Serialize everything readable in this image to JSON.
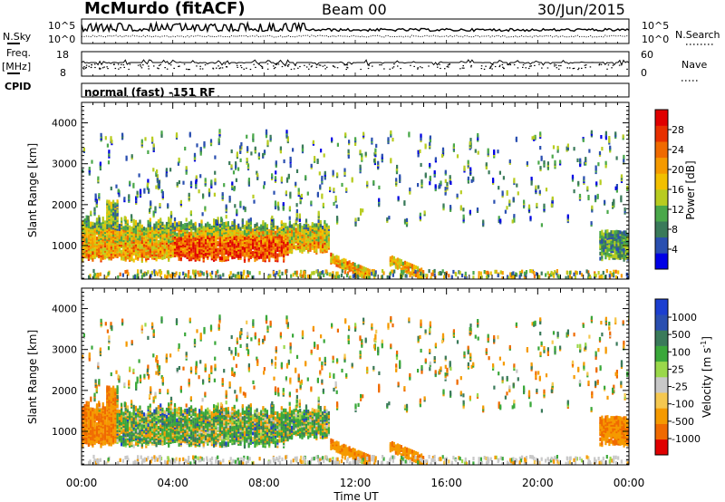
{
  "header": {
    "station": "McMurdo (fitACF)",
    "beam": "Beam 00",
    "date": "30/Jun/2015"
  },
  "summary": {
    "nsky_label": "N.Sky",
    "nsearch_label": "N.Search",
    "freq_label": "Freq.",
    "freq_unit": "[MHz]",
    "nave_label": "Nave",
    "cpid_label": "CPID",
    "cpid_value": "normal (fast) -151 RF",
    "noise_ticks_left": [
      "10^5",
      "10^0"
    ],
    "noise_ticks_right": [
      "10^5",
      "10^0"
    ],
    "freq_ticks": [
      "18",
      "8"
    ],
    "nave_ticks": [
      "60",
      "0"
    ]
  },
  "x_axis": {
    "label": "Time UT",
    "ticks": [
      "00:00",
      "04:00",
      "08:00",
      "12:00",
      "16:00",
      "20:00",
      "00:00"
    ]
  },
  "colors": {
    "power_scale": [
      "#0000e6",
      "#2a4fb0",
      "#3a7a5a",
      "#4aa84a",
      "#b8cc20",
      "#f2c000",
      "#f59a00",
      "#f06a00",
      "#e83000",
      "#e00000"
    ],
    "velocity_scale": [
      "#e00000",
      "#f06a00",
      "#f59a00",
      "#f5c850",
      "#c8c8c8",
      "#9ad84a",
      "#3aa83a",
      "#3a7a5a",
      "#2a4fb0",
      "#1c3fd0"
    ]
  },
  "chart_data": [
    {
      "type": "heatmap",
      "title": "Power",
      "ylabel": "Slant Range [km]",
      "xlabel": "",
      "y_ticks": [
        "1000",
        "2000",
        "3000",
        "4000"
      ],
      "ylim": [
        180,
        4500
      ],
      "xlim_hours": [
        0,
        24
      ],
      "colorbar": {
        "label": "Power [dB]",
        "range": [
          0,
          32
        ],
        "ticks": [
          "4",
          "8",
          "12",
          "16",
          "20",
          "24",
          "28"
        ]
      },
      "regions": [
        {
          "t": [
            0.0,
            10.8
          ],
          "range_km": [
            700,
            1700
          ],
          "value_db": 22,
          "note": "main echo band"
        },
        {
          "t": [
            4.5,
            8.5
          ],
          "range_km": [
            700,
            1200
          ],
          "value_db": 28,
          "note": "strongest power"
        },
        {
          "t": [
            10.9,
            12.5
          ],
          "range_km": [
            300,
            700
          ],
          "value_db": 20,
          "note": "descending echo"
        },
        {
          "t": [
            13.5,
            15.0
          ],
          "range_km": [
            300,
            700
          ],
          "value_db": 18,
          "note": "descending echo"
        },
        {
          "t": [
            22.7,
            24.0
          ],
          "range_km": [
            600,
            1400
          ],
          "value_db": 12,
          "note": "late echoes"
        }
      ]
    },
    {
      "type": "heatmap",
      "title": "Velocity",
      "ylabel": "Slant Range [km]",
      "xlabel": "Time UT",
      "y_ticks": [
        "1000",
        "2000",
        "3000",
        "4000"
      ],
      "ylim": [
        180,
        4500
      ],
      "xlim_hours": [
        0,
        24
      ],
      "colorbar": {
        "label": "Velocity [m s^-1]",
        "ticks": [
          "1000",
          "500",
          "100",
          "25",
          "-25",
          "-100",
          "-500",
          "-1000"
        ]
      },
      "regions": [
        {
          "t": [
            0.0,
            1.5
          ],
          "range_km": [
            900,
            1700
          ],
          "value_ms": -500,
          "note": "orange away flow"
        },
        {
          "t": [
            1.5,
            10.8
          ],
          "range_km": [
            650,
            1700
          ],
          "value_ms": 100,
          "note": "green/blue toward flow"
        },
        {
          "t": [
            10.9,
            12.5
          ],
          "range_km": [
            300,
            700
          ],
          "value_ms": -100,
          "note": "orange descending"
        },
        {
          "t": [
            13.5,
            15.0
          ],
          "range_km": [
            300,
            700
          ],
          "value_ms": -500,
          "note": "orange descending"
        },
        {
          "t": [
            22.7,
            24.0
          ],
          "range_km": [
            600,
            1400
          ],
          "value_ms": -500,
          "note": "orange late echoes"
        }
      ]
    }
  ]
}
